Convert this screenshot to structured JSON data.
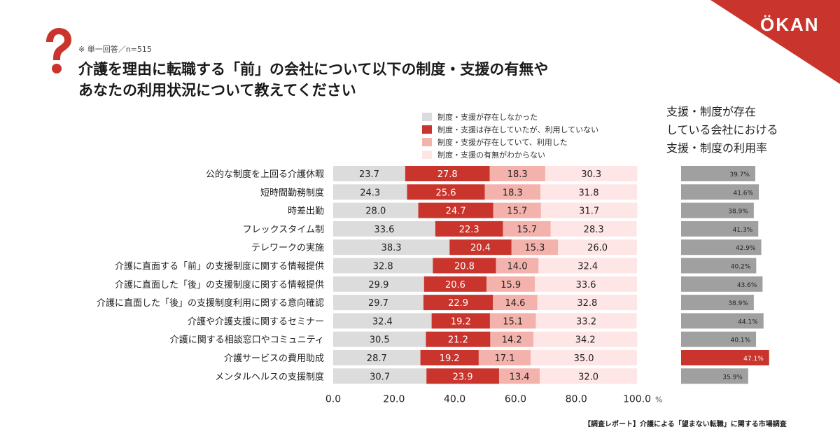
{
  "brand": {
    "logo": "ÖKAN",
    "accent": "#c9352c"
  },
  "header": {
    "note": "※ 単一回答／n=515",
    "title_line1": "介護を理由に転職する「前」の会社について以下の制度・支援の有無や",
    "title_line2": "あなたの利用状況について教えてください"
  },
  "rate_panel_title": [
    "支援・制度が存在",
    "している会社における",
    "支援・制度の利用率"
  ],
  "footer": "【調査レポート】介護による「望まない転職」に関する市場調査",
  "chart_data": {
    "type": "bar",
    "orientation": "horizontal",
    "stacked": true,
    "xlim": [
      0,
      100
    ],
    "x_ticks": [
      "0.0",
      "20.0",
      "40.0",
      "60.0",
      "80.0",
      "100.0"
    ],
    "x_unit": "%",
    "categories": [
      "公的な制度を上回る介護休暇",
      "短時間勤務制度",
      "時差出勤",
      "フレックスタイム制",
      "テレワークの実施",
      "介護に直面する「前」の支援制度に関する情報提供",
      "介護に直面した「後」の支援制度に関する情報提供",
      "介護に直面した「後」の支援制度利用に関する意向確認",
      "介護や介護支援に関するセミナー",
      "介護に関する相談窓口やコミュニティ",
      "介護サービスの費用助成",
      "メンタルヘルスの支援制度"
    ],
    "series": [
      {
        "name": "制度・支援が存在しなかった",
        "color": "#dcdcdc",
        "text_color": "#222222",
        "values": [
          23.7,
          24.3,
          28.0,
          33.6,
          38.3,
          32.8,
          29.9,
          29.7,
          32.4,
          30.5,
          28.7,
          30.7
        ]
      },
      {
        "name": "制度・支援は存在していたが、利用していない",
        "color": "#c9352c",
        "text_color": "#ffffff",
        "values": [
          27.8,
          25.6,
          24.7,
          22.3,
          20.4,
          20.8,
          20.6,
          22.9,
          19.2,
          21.2,
          19.2,
          23.9
        ]
      },
      {
        "name": "制度・支援が存在していて、利用した",
        "color": "#f4b2ad",
        "text_color": "#222222",
        "values": [
          18.3,
          18.3,
          15.7,
          15.7,
          15.3,
          14.0,
          15.9,
          14.6,
          15.1,
          14.2,
          17.1,
          13.4
        ]
      },
      {
        "name": "制度・支援の有無がわからない",
        "color": "#fde6e5",
        "text_color": "#222222",
        "values": [
          30.3,
          31.8,
          31.7,
          28.3,
          26.0,
          32.4,
          33.6,
          32.8,
          33.2,
          34.2,
          35.0,
          32.0
        ]
      }
    ],
    "usage_rate": {
      "values": [
        39.7,
        41.6,
        38.9,
        41.3,
        42.9,
        40.2,
        43.6,
        38.9,
        44.1,
        40.1,
        47.1,
        35.9
      ],
      "labels": [
        "39.7%",
        "41.6%",
        "38.9%",
        "41.3%",
        "42.9%",
        "40.2%",
        "43.6%",
        "38.9%",
        "44.1%",
        "40.1%",
        "47.1%",
        "35.9%"
      ],
      "color": "#a0a0a0",
      "highlight_color": "#c9352c",
      "highlight_index": 10
    }
  }
}
